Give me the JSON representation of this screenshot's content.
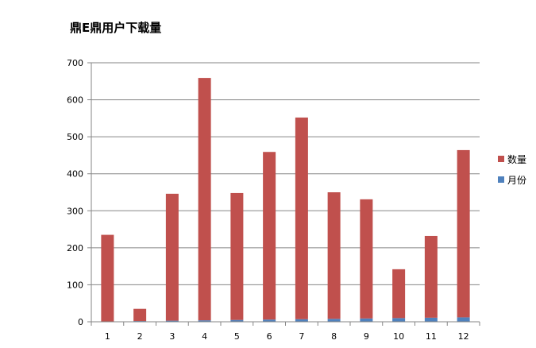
{
  "chart_data": {
    "type": "bar",
    "stacked": true,
    "title": "鼎E鼎用户下载量",
    "xlabel": "",
    "ylabel": "",
    "categories": [
      "1",
      "2",
      "3",
      "4",
      "5",
      "6",
      "7",
      "8",
      "9",
      "10",
      "11",
      "12"
    ],
    "series": [
      {
        "name": "月份",
        "color": "#4f81bd",
        "values": [
          1,
          2,
          3,
          4,
          5,
          6,
          7,
          8,
          9,
          10,
          11,
          12
        ]
      },
      {
        "name": "数量",
        "color": "#c0504d",
        "values": [
          234,
          33,
          343,
          655,
          343,
          453,
          545,
          342,
          322,
          132,
          221,
          452
        ]
      }
    ],
    "ylim": [
      0,
      700
    ],
    "yticks": [
      0,
      100,
      200,
      300,
      400,
      500,
      600,
      700
    ],
    "grid": true,
    "legend_position": "right",
    "legend_order": [
      "数量",
      "月份"
    ]
  }
}
